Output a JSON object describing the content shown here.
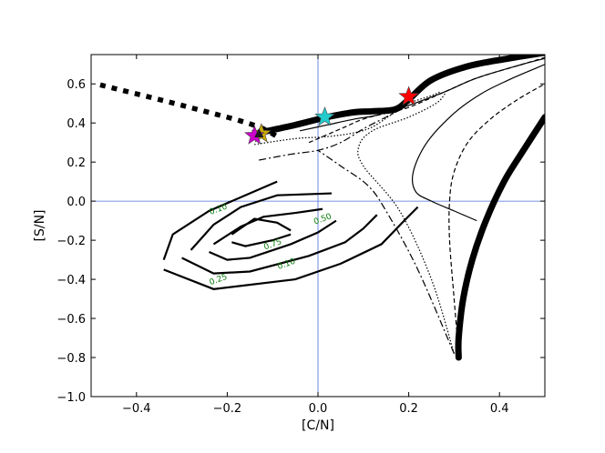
{
  "chart_data": {
    "type": "line",
    "xlabel": "[C/N]",
    "ylabel": "[S/N]",
    "xlim": [
      -0.5,
      0.5
    ],
    "ylim": [
      -1.0,
      0.75
    ],
    "xticks": [
      -0.4,
      -0.2,
      0.0,
      0.2,
      0.4
    ],
    "yticks": [
      -1.0,
      -0.8,
      -0.6,
      -0.4,
      -0.2,
      0.0,
      0.2,
      0.4,
      0.6
    ],
    "xtick_labels": [
      "−0.4",
      "−0.2",
      "0.0",
      "0.2",
      "0.4"
    ],
    "ytick_labels": [
      "−1.0",
      "−0.8",
      "−0.6",
      "−0.4",
      "−0.2",
      "0.0",
      "0.2",
      "0.4",
      "0.6"
    ],
    "reference_lines": {
      "x": 0.0,
      "y": 0.0,
      "color": "#4a6fd8"
    },
    "series": [
      {
        "style": "thick-dotted",
        "x": [
          -0.48,
          -0.35,
          -0.25,
          -0.17,
          -0.12,
          -0.09
        ],
        "y": [
          0.595,
          0.52,
          0.46,
          0.41,
          0.37,
          0.33
        ]
      },
      {
        "style": "very-thick-solid",
        "x": [
          -0.13,
          -0.05,
          0.02,
          0.08,
          0.12,
          0.17,
          0.2,
          0.25,
          0.33,
          0.42,
          0.5
        ],
        "y": [
          0.35,
          0.39,
          0.43,
          0.455,
          0.46,
          0.47,
          0.52,
          0.62,
          0.69,
          0.73,
          0.76
        ]
      },
      {
        "style": "thin-solid",
        "x": [
          -0.04,
          0.02,
          0.08,
          0.13,
          0.2,
          0.28,
          0.35,
          0.45,
          0.5
        ],
        "y": [
          0.36,
          0.39,
          0.42,
          0.44,
          0.49,
          0.56,
          0.63,
          0.7,
          0.73
        ]
      },
      {
        "style": "dashed",
        "x": [
          -0.02,
          0.05,
          0.1,
          0.15,
          0.2,
          0.28,
          0.35,
          0.45,
          0.5
        ],
        "y": [
          0.3,
          0.37,
          0.42,
          0.45,
          0.48,
          0.56,
          0.63,
          0.7,
          0.735
        ]
      },
      {
        "style": "dotted",
        "x": [
          -0.14,
          -0.05,
          0.02,
          0.08,
          0.12,
          0.16,
          0.2,
          0.25,
          0.27
        ],
        "y": [
          0.29,
          0.32,
          0.33,
          0.35,
          0.38,
          0.44,
          0.5,
          0.54,
          0.56
        ]
      },
      {
        "style": "dashdot",
        "x": [
          -0.13,
          -0.06,
          0.0,
          0.05,
          0.1,
          0.15,
          0.2
        ],
        "y": [
          0.21,
          0.24,
          0.26,
          0.3,
          0.37,
          0.43,
          0.49
        ]
      },
      {
        "style": "very-thick-solid",
        "x": [
          0.31,
          0.31,
          0.32,
          0.34,
          0.37,
          0.41,
          0.45,
          0.5
        ],
        "y": [
          -0.8,
          -0.7,
          -0.5,
          -0.3,
          -0.1,
          0.1,
          0.25,
          0.43
        ]
      },
      {
        "style": "thin-solid",
        "x": [
          0.35,
          0.3,
          0.25,
          0.215,
          0.21,
          0.24,
          0.3,
          0.36,
          0.42,
          0.48,
          0.5
        ],
        "y": [
          -0.1,
          -0.05,
          0.0,
          0.05,
          0.15,
          0.3,
          0.45,
          0.55,
          0.62,
          0.68,
          0.7
        ]
      },
      {
        "style": "dashed",
        "x": [
          0.31,
          0.3,
          0.29,
          0.29,
          0.3,
          0.33,
          0.38,
          0.44,
          0.5
        ],
        "y": [
          -0.78,
          -0.5,
          -0.2,
          0.0,
          0.15,
          0.3,
          0.42,
          0.52,
          0.6
        ]
      },
      {
        "style": "dotted",
        "x": [
          0.3,
          0.25,
          0.18,
          0.1,
          0.09,
          0.12,
          0.2,
          0.26,
          0.28
        ],
        "y": [
          -0.78,
          -0.4,
          -0.05,
          0.18,
          0.28,
          0.36,
          0.43,
          0.5,
          0.55
        ]
      },
      {
        "style": "dashdot",
        "x": [
          0.3,
          0.22,
          0.15,
          0.11,
          0.05,
          0.0
        ],
        "y": [
          -0.78,
          -0.35,
          -0.05,
          0.08,
          0.18,
          0.26
        ]
      }
    ],
    "contours": [
      {
        "label": "0.10",
        "x": [
          -0.34,
          -0.32,
          -0.24,
          -0.14,
          -0.09
        ],
        "y": [
          -0.3,
          -0.17,
          -0.05,
          0.05,
          0.1
        ]
      },
      {
        "label": "0.10",
        "x": [
          -0.34,
          -0.23,
          -0.05,
          0.05,
          0.14,
          0.19,
          0.22
        ],
        "y": [
          -0.35,
          -0.45,
          -0.4,
          -0.32,
          -0.22,
          -0.1,
          -0.03
        ]
      },
      {
        "label": "0.25",
        "x": [
          -0.28,
          -0.23,
          -0.17,
          -0.09,
          0.03
        ],
        "y": [
          -0.25,
          -0.12,
          -0.03,
          0.03,
          0.04
        ]
      },
      {
        "label": "0.25",
        "x": [
          -0.3,
          -0.23,
          -0.15,
          -0.02,
          0.06,
          0.1,
          0.13
        ],
        "y": [
          -0.29,
          -0.37,
          -0.36,
          -0.28,
          -0.21,
          -0.14,
          -0.07
        ]
      },
      {
        "label": "0.50",
        "x": [
          -0.23,
          -0.17,
          -0.12,
          -0.05,
          0.01
        ],
        "y": [
          -0.22,
          -0.13,
          -0.08,
          -0.06,
          -0.04
        ]
      },
      {
        "label": "0.50",
        "x": [
          -0.24,
          -0.2,
          -0.15,
          -0.06,
          0.0,
          0.04
        ],
        "y": [
          -0.26,
          -0.3,
          -0.29,
          -0.22,
          -0.16,
          -0.1
        ]
      },
      {
        "label": "0.75",
        "x": [
          -0.19,
          -0.14,
          -0.09,
          -0.06
        ],
        "y": [
          -0.17,
          -0.09,
          -0.11,
          -0.15
        ]
      },
      {
        "label": "0.75",
        "x": [
          -0.19,
          -0.16,
          -0.1,
          -0.06
        ],
        "y": [
          -0.21,
          -0.23,
          -0.2,
          -0.17
        ]
      }
    ],
    "contour_labels": [
      {
        "text": "0.10",
        "x": -0.22,
        "y": -0.04
      },
      {
        "text": "0.50",
        "x": 0.01,
        "y": -0.09
      },
      {
        "text": "0.75",
        "x": -0.1,
        "y": -0.22
      },
      {
        "text": "0.10",
        "x": -0.07,
        "y": -0.32
      },
      {
        "text": "0.25",
        "x": -0.22,
        "y": -0.4
      }
    ],
    "markers": [
      {
        "shape": "star",
        "color": "#ff0000",
        "x": 0.2,
        "y": 0.535
      },
      {
        "shape": "star",
        "color": "#22cccc",
        "x": 0.015,
        "y": 0.43
      },
      {
        "shape": "star",
        "color": "#ccaa00",
        "x": -0.125,
        "y": 0.345
      },
      {
        "shape": "star",
        "color": "#cc00cc",
        "x": -0.14,
        "y": 0.335
      },
      {
        "shape": "triangle",
        "color": "#1a1a1a",
        "x": -0.13,
        "y": 0.345
      }
    ],
    "grid": false
  }
}
